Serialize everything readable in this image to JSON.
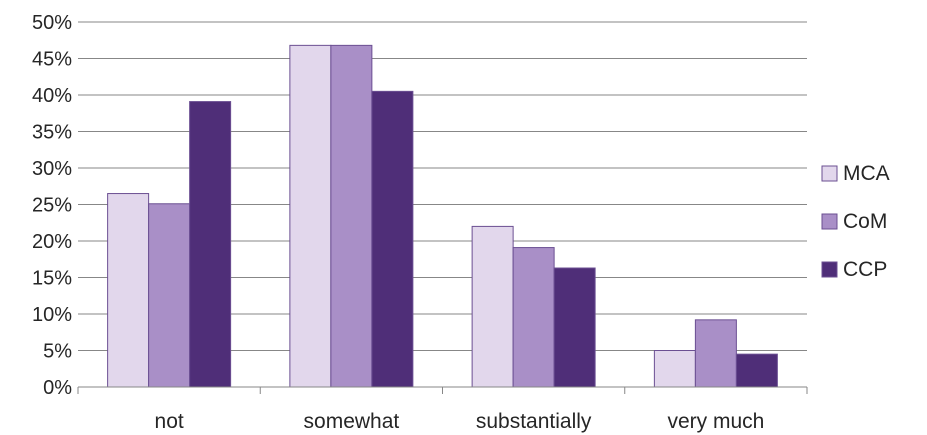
{
  "chart_data": {
    "type": "bar",
    "categories": [
      "not",
      "somewhat",
      "substantially",
      "very much"
    ],
    "series": [
      {
        "name": "MCA",
        "values": [
          26.5,
          46.8,
          22.0,
          5.0
        ],
        "color": "#e2d7ec"
      },
      {
        "name": "CoM",
        "values": [
          25.1,
          46.8,
          19.1,
          9.2
        ],
        "color": "#a98fc7"
      },
      {
        "name": "CCP",
        "values": [
          39.1,
          40.5,
          16.3,
          4.5
        ],
        "color": "#4f2e78"
      }
    ],
    "y_ticks": [
      "0%",
      "5%",
      "10%",
      "15%",
      "20%",
      "25%",
      "30%",
      "35%",
      "40%",
      "45%",
      "50%"
    ],
    "ylim": [
      0,
      50
    ],
    "y_unit": "%",
    "grid": true,
    "legend_position": "right",
    "bar_stroke_color": "#6b4f92",
    "grid_color": "#878787"
  }
}
